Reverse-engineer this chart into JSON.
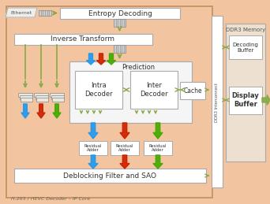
{
  "bg_main": "#f2c4a0",
  "bg_ddr": "#ede0d0",
  "title_text": "H.265 / HEVC Decoder – IP Core",
  "entropy_text": "Entropy Decoding",
  "inv_transform_text": "Inverse Transform",
  "prediction_text": "Prediction",
  "intra_text": "Intra\nDecoder",
  "inter_text": "Inter\nDecoder",
  "cache_text": "Cache",
  "residual_text": "Residual\nAdder",
  "deblock_text": "Deblocking Filter and SAO",
  "ddr_text": "DDR3 Memory",
  "decbuf_text": "Decoding\nBuffer",
  "dispbuf_text": "Display\nBuffer",
  "interconnect_text": "I Interconnect",
  "ethernet_text": "Ethernet",
  "color_blue": "#2299ee",
  "color_red": "#cc2200",
  "color_green": "#44aa00",
  "color_olive": "#88aa44",
  "color_arrow": "#88aa44",
  "color_dkgray": "#888888"
}
